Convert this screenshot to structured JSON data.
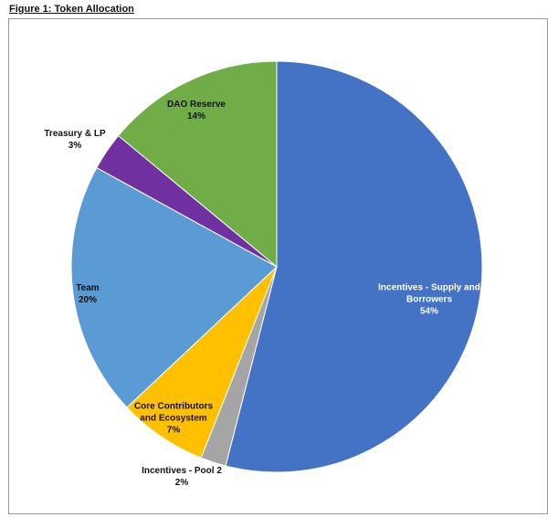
{
  "chart_data": {
    "type": "pie",
    "title": "Figure 1: Token Allocation",
    "start": "top",
    "direction": "clockwise",
    "slices": [
      {
        "label": "Incentives - Supply and Borrowers",
        "label_lines": [
          "Incentives - Supply and",
          "Borrowers"
        ],
        "value": 54,
        "display": "54%",
        "color": "#4472C4",
        "text_color": "#ffffff"
      },
      {
        "label": "Incentives - Pool 2",
        "label_lines": [
          "Incentives - Pool 2"
        ],
        "value": 2,
        "display": "2%",
        "color": "#A5A5A5",
        "text_color": "#111111"
      },
      {
        "label": "Core Contributors and Ecosystem",
        "label_lines": [
          "Core Contributors",
          "and Ecosystem"
        ],
        "value": 7,
        "display": "7%",
        "color": "#FFC000",
        "text_color": "#111111"
      },
      {
        "label": "Team",
        "label_lines": [
          "Team"
        ],
        "value": 20,
        "display": "20%",
        "color": "#5B9BD5",
        "text_color": "#111111"
      },
      {
        "label": "Treasury & LP",
        "label_lines": [
          "Treasury & LP"
        ],
        "value": 3,
        "display": "3%",
        "color": "#7030A0",
        "text_color": "#111111"
      },
      {
        "label": "DAO Reserve",
        "label_lines": [
          "DAO Reserve"
        ],
        "value": 14,
        "display": "14%",
        "color": "#70AD47",
        "text_color": "#111111"
      }
    ]
  }
}
